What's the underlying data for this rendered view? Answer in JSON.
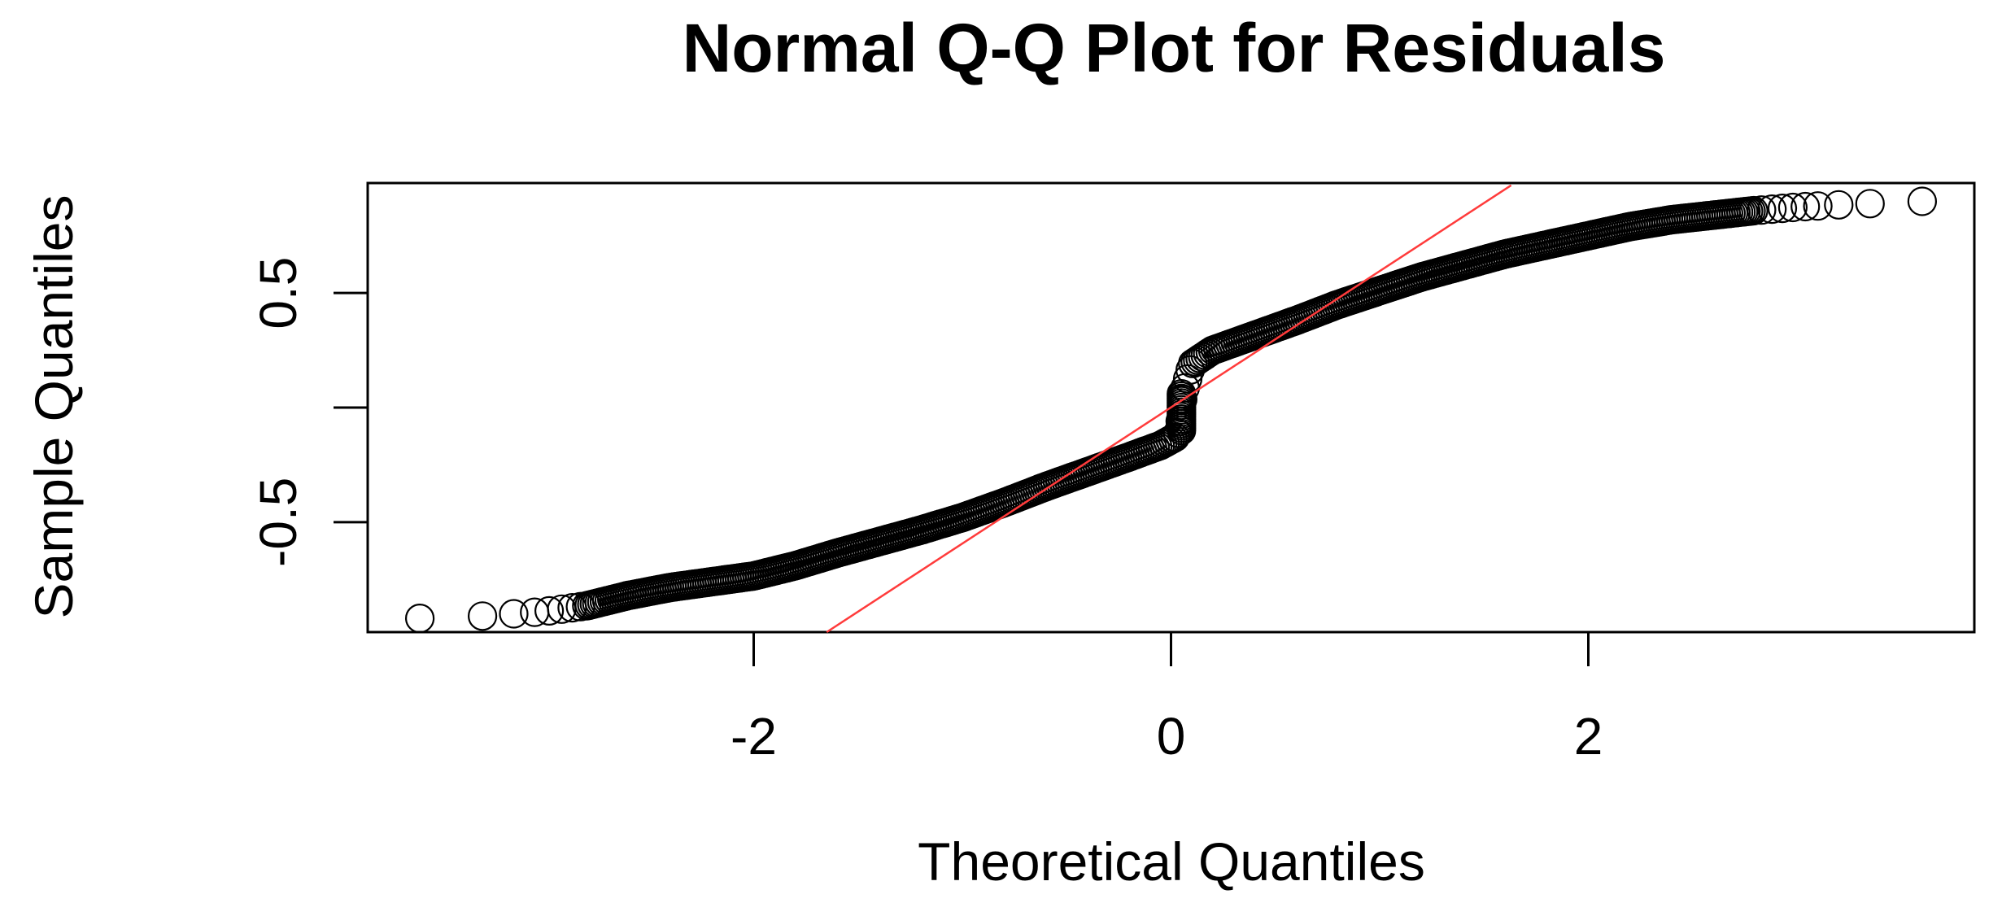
{
  "chart_data": {
    "type": "scatter",
    "title": "Normal Q-Q Plot for Residuals",
    "xlabel": "Theoretical Quantiles",
    "ylabel": "Sample Quantiles",
    "xlim": [
      -3.85,
      3.85
    ],
    "ylim": [
      -0.98,
      0.98
    ],
    "xticks": [
      -2,
      0,
      2
    ],
    "yticks": [
      -0.5,
      0,
      0.5
    ],
    "ytick_labels": [
      "-0.5",
      "",
      "0.5"
    ],
    "grid": false,
    "legend": "none",
    "colors": {
      "points": "#000000",
      "reference_line": "#ff3b3b",
      "frame": "#000000"
    },
    "reference_line": {
      "points": [
        [
          -1.65,
          -0.98
        ],
        [
          1.63,
          0.97
        ]
      ]
    },
    "series": [
      {
        "marker": "open-circle",
        "qq_curve": [
          [
            -3.6,
            -0.92
          ],
          [
            -3.3,
            -0.91
          ],
          [
            -3.0,
            -0.89
          ],
          [
            -2.8,
            -0.865
          ],
          [
            -2.6,
            -0.82
          ],
          [
            -2.4,
            -0.785
          ],
          [
            -2.2,
            -0.76
          ],
          [
            -2.0,
            -0.735
          ],
          [
            -1.8,
            -0.69
          ],
          [
            -1.6,
            -0.635
          ],
          [
            -1.4,
            -0.585
          ],
          [
            -1.2,
            -0.535
          ],
          [
            -1.0,
            -0.48
          ],
          [
            -0.8,
            -0.415
          ],
          [
            -0.6,
            -0.345
          ],
          [
            -0.4,
            -0.28
          ],
          [
            -0.2,
            -0.215
          ],
          [
            -0.05,
            -0.165
          ],
          [
            0.02,
            -0.13
          ],
          [
            0.04,
            -0.1
          ],
          [
            0.05,
            0.0
          ],
          [
            0.06,
            0.06
          ],
          [
            0.1,
            0.19
          ],
          [
            0.2,
            0.25
          ],
          [
            0.4,
            0.315
          ],
          [
            0.6,
            0.38
          ],
          [
            0.8,
            0.45
          ],
          [
            1.0,
            0.51
          ],
          [
            1.2,
            0.57
          ],
          [
            1.4,
            0.62
          ],
          [
            1.6,
            0.67
          ],
          [
            1.8,
            0.71
          ],
          [
            2.0,
            0.75
          ],
          [
            2.2,
            0.79
          ],
          [
            2.4,
            0.82
          ],
          [
            2.6,
            0.84
          ],
          [
            2.8,
            0.86
          ],
          [
            3.0,
            0.875
          ],
          [
            3.2,
            0.885
          ],
          [
            3.35,
            0.89
          ],
          [
            3.6,
            0.9
          ]
        ]
      }
    ]
  }
}
